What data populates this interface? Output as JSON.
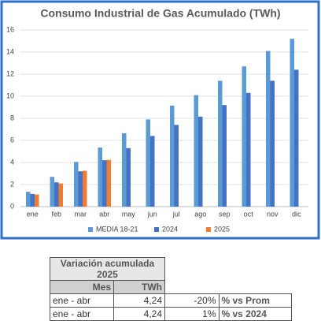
{
  "chart_data": {
    "type": "bar",
    "title": "Consumo Industrial de Gas Acumulado (TWh)",
    "categories": [
      "ene",
      "feb",
      "mar",
      "abr",
      "may",
      "jun",
      "jul",
      "ago",
      "sep",
      "oct",
      "nov",
      "dic"
    ],
    "series": [
      {
        "name": "MEDIA 18-21",
        "color": "#5b9bd5",
        "values": [
          1.35,
          2.7,
          4.05,
          5.35,
          6.65,
          7.9,
          9.15,
          10.1,
          11.4,
          12.7,
          14.1,
          15.2
        ]
      },
      {
        "name": "2024",
        "color": "#4472c4",
        "values": [
          1.15,
          2.2,
          3.2,
          4.2,
          5.3,
          6.4,
          7.4,
          8.15,
          9.2,
          10.3,
          11.4,
          12.4
        ]
      },
      {
        "name": "2025",
        "color": "#ed7d31",
        "values": [
          1.1,
          2.1,
          3.25,
          4.24,
          null,
          null,
          null,
          null,
          null,
          null,
          null,
          null
        ]
      }
    ],
    "ylim": [
      0,
      16
    ],
    "yticks": [
      0,
      2,
      4,
      6,
      8,
      10,
      12,
      14,
      16
    ],
    "grid": true,
    "legend": "bottom"
  },
  "table": {
    "title": "Variación acumulada 2025",
    "header": [
      "Mes",
      "TWh"
    ],
    "rows": [
      [
        "ene - abr",
        "4,24",
        "-20%",
        "% vs Prom"
      ],
      [
        "ene - abr",
        "4,24",
        "1%",
        "% vs 2024"
      ]
    ]
  }
}
